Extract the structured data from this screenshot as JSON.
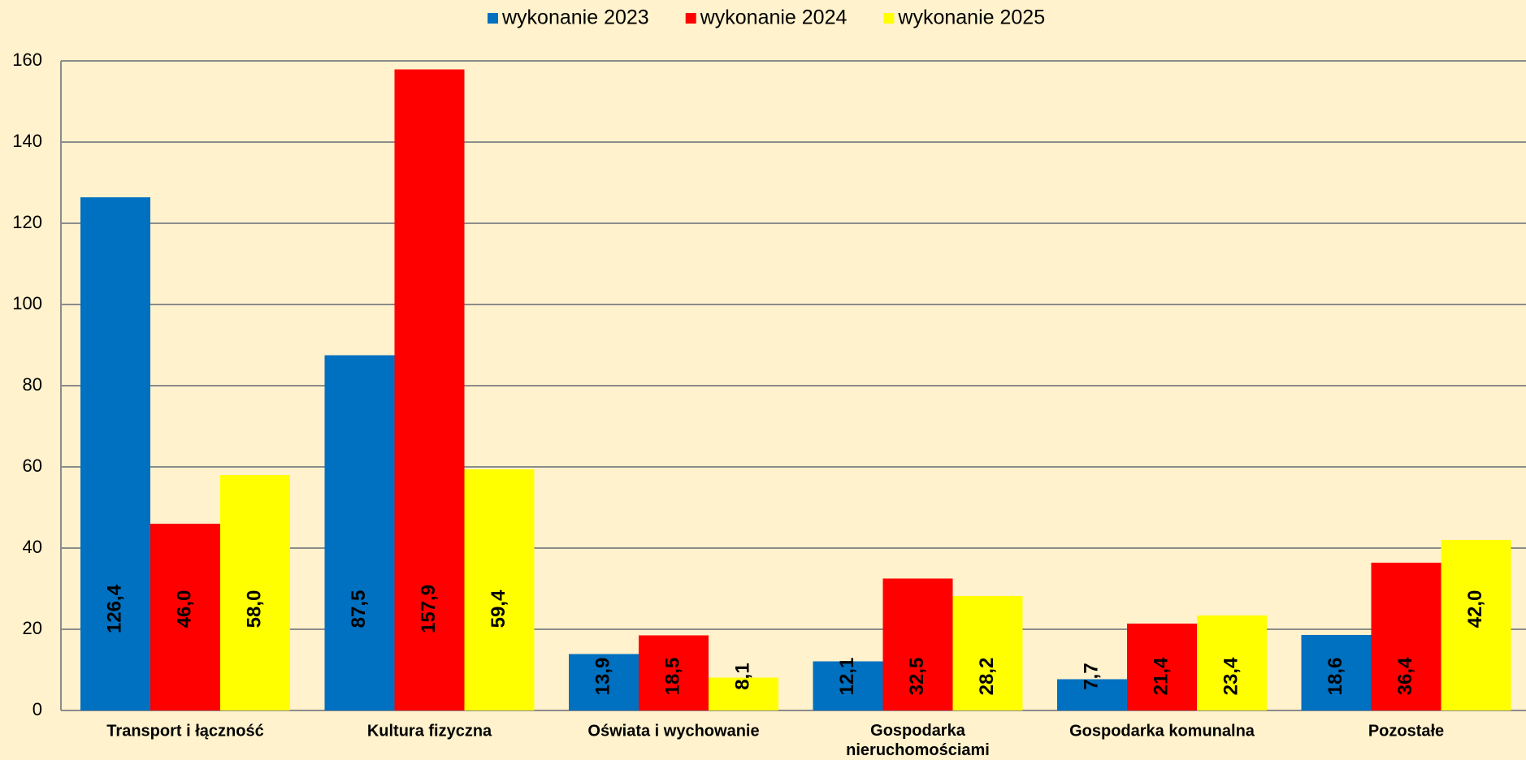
{
  "chart_data": {
    "type": "bar",
    "categories": [
      "Transport i łączność",
      "Kultura fizyczna",
      "Oświata i wychowanie",
      "Gospodarka nieruchomościami",
      "Gospodarka komunalna",
      "Pozostałe"
    ],
    "series": [
      {
        "name": "wykonanie 2023",
        "color": "#0070c0",
        "values": [
          126.4,
          87.5,
          13.9,
          12.1,
          7.7,
          18.6
        ],
        "value_labels": [
          "126,4",
          "87,5",
          "13,9",
          "12,1",
          "7,7",
          "18,6"
        ]
      },
      {
        "name": "wykonanie 2024",
        "color": "#ff0000",
        "values": [
          46.0,
          157.9,
          18.5,
          32.5,
          21.4,
          36.4
        ],
        "value_labels": [
          "46,0",
          "157,9",
          "18,5",
          "32,5",
          "21,4",
          "36,4"
        ]
      },
      {
        "name": "wykonanie 2025",
        "color": "#ffff00",
        "values": [
          58.0,
          59.4,
          8.1,
          28.2,
          23.4,
          42.0
        ],
        "value_labels": [
          "58,0",
          "59,4",
          "8,1",
          "28,2",
          "23,4",
          "42,0"
        ]
      }
    ],
    "ylim": [
      0,
      160
    ],
    "yticks": [
      0,
      20,
      40,
      60,
      80,
      100,
      120,
      140,
      160
    ],
    "grid": true,
    "legend": "top"
  }
}
